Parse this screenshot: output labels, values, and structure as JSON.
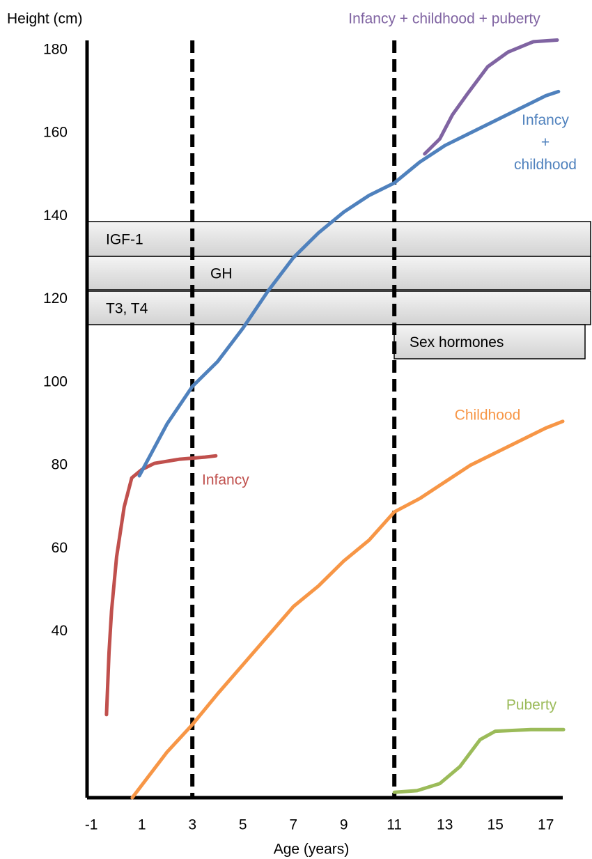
{
  "chart_data": {
    "type": "line",
    "y_label": "Height (cm)",
    "x_label": "Age (years)",
    "xlim": [
      -1.17,
      17.67
    ],
    "ylim": [
      0,
      185
    ],
    "xticks": [
      -1,
      1,
      3,
      5,
      7,
      9,
      11,
      13,
      15,
      17
    ],
    "yticks": [
      40,
      60,
      80,
      100,
      120,
      140,
      160,
      180
    ],
    "vlines": [
      3,
      11
    ],
    "bands": [
      "IGF-1",
      "GH",
      "T3, T4",
      "Sex hormones"
    ],
    "series": [
      {
        "name": "Infancy",
        "color": "#c0504d",
        "x": [
          -0.4,
          -0.3,
          -0.2,
          0,
          0.3,
          0.6,
          1,
          1.5,
          2.5,
          3.5,
          3.93
        ],
        "values": [
          20,
          35,
          45,
          58,
          70,
          77,
          79,
          80.5,
          81.5,
          82,
          82.3
        ]
      },
      {
        "name": "Infancy + childhood",
        "color": "#4f81bd",
        "x": [
          0.9,
          2,
          3,
          4,
          5,
          6,
          7,
          8,
          9,
          10,
          11,
          12,
          13,
          14,
          15,
          16,
          17,
          17.5
        ],
        "values": [
          77.5,
          90,
          99,
          105,
          113,
          122,
          130,
          136,
          141,
          145,
          148,
          153,
          157,
          160,
          163,
          166,
          169,
          170
        ]
      },
      {
        "name": "Childhood",
        "color": "#f79646",
        "x": [
          0.62,
          2,
          3,
          4,
          5,
          6,
          7,
          8,
          9,
          10,
          11,
          12,
          13,
          14,
          15,
          16,
          17,
          17.67
        ],
        "values": [
          0,
          11,
          17.6,
          25,
          32,
          39,
          46,
          51,
          57,
          62,
          68.8,
          72,
          76,
          80,
          83,
          86,
          89,
          90.6
        ]
      },
      {
        "name": "Puberty",
        "color": "#9bbb59",
        "x": [
          11,
          11.9,
          12.8,
          13.6,
          14.4,
          15,
          16.4,
          17.7
        ],
        "values": [
          1.3,
          1.7,
          3.4,
          7.5,
          14,
          16,
          16.4,
          16.4
        ]
      },
      {
        "name": "Infancy + childhood + puberty",
        "color": "#8064a2",
        "x": [
          12.2,
          12.8,
          13.3,
          13.9,
          14.7,
          15.5,
          16.5,
          17.45
        ],
        "values": [
          155,
          158.6,
          164.4,
          169.5,
          176,
          179.5,
          182,
          182.4
        ]
      }
    ]
  }
}
